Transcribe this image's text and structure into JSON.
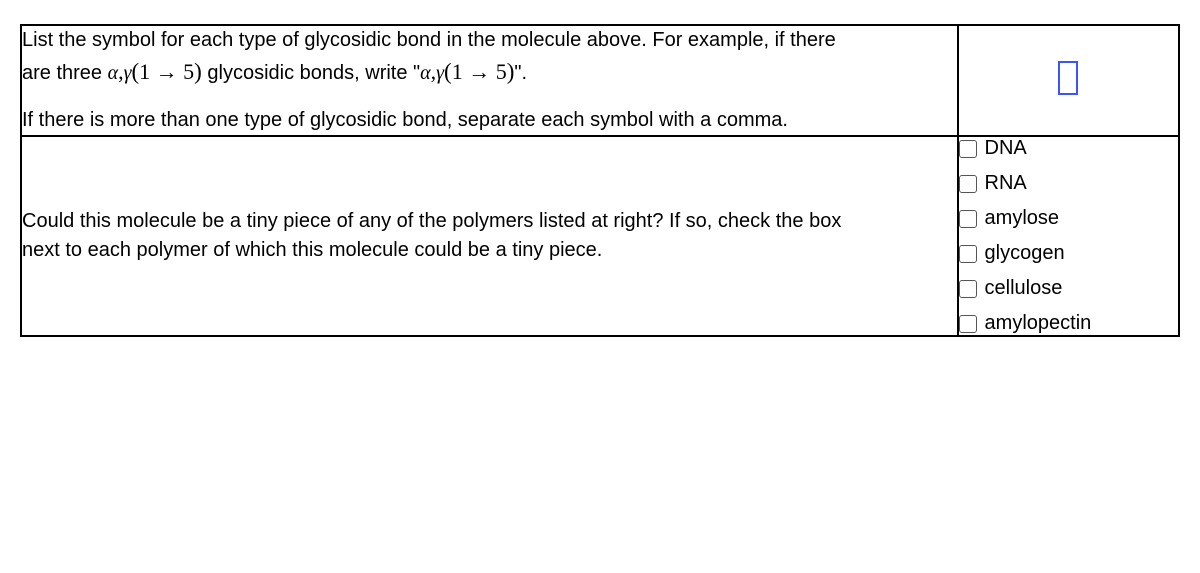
{
  "q1": {
    "line1_a": "List the symbol for each type of glycosidic bond in the molecule above. For example, if there",
    "line2_a": "are three ",
    "alpha": "α",
    "comma": ",",
    "gamma": "γ",
    "lpar": "(",
    "one": "1",
    "arrow": " → ",
    "five": "5",
    "rpar": ")",
    "line2_b": " glycosidic bonds, write \"",
    "quote_close": "\".",
    "p2": "If there is more than one type of glycosidic bond, separate each symbol with a comma."
  },
  "q2": {
    "line1": "Could this molecule be a tiny piece of any of the polymers listed at right? If so, check the box",
    "line2": "next to each polymer of which this molecule could be a tiny piece."
  },
  "options": [
    "DNA",
    "RNA",
    "amylose",
    "glycogen",
    "cellulose",
    "amylopectin"
  ]
}
